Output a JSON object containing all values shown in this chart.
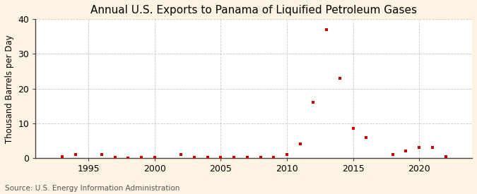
{
  "title": "Annual U.S. Exports to Panama of Liquified Petroleum Gases",
  "ylabel": "Thousand Barrels per Day",
  "source": "Source: U.S. Energy Information Administration",
  "background_color": "#fdf3e3",
  "plot_bg_color": "#ffffff",
  "marker_color": "#cc0000",
  "years": [
    1993,
    1994,
    1996,
    1997,
    1998,
    1999,
    2000,
    2002,
    2003,
    2004,
    2005,
    2006,
    2007,
    2008,
    2009,
    2010,
    2011,
    2012,
    2013,
    2014,
    2015,
    2016,
    2018,
    2019,
    2020,
    2021,
    2022
  ],
  "values": [
    0.5,
    1.0,
    1.0,
    0.3,
    0.1,
    0.2,
    0.2,
    1.0,
    0.3,
    0.2,
    0.2,
    0.2,
    0.2,
    0.3,
    0.2,
    1.0,
    4.0,
    16.0,
    37.0,
    23.0,
    8.5,
    6.0,
    1.0,
    2.0,
    3.0,
    3.0,
    0.5
  ],
  "xlim": [
    1991,
    2024
  ],
  "ylim": [
    0,
    40
  ],
  "yticks": [
    0,
    10,
    20,
    30,
    40
  ],
  "xticks": [
    1995,
    2000,
    2005,
    2010,
    2015,
    2020
  ],
  "grid_color": "#bbbbbb",
  "title_fontsize": 11,
  "label_fontsize": 8.5,
  "tick_fontsize": 9,
  "source_fontsize": 7.5
}
